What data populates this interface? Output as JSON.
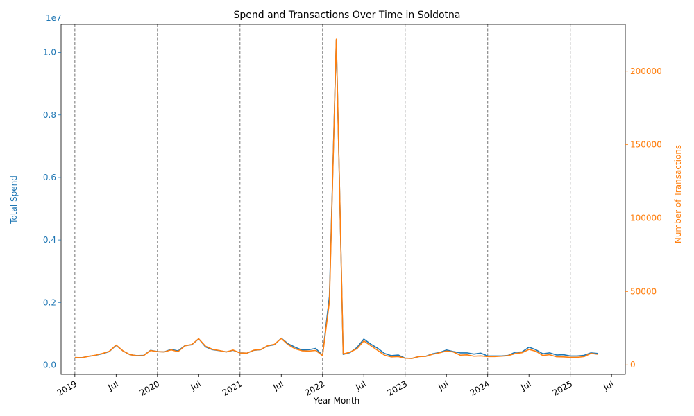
{
  "chart_data": {
    "type": "line",
    "title": "Spend and Transactions Over Time in Soldotna",
    "xlabel": "Year-Month",
    "y_left_label": "Total Spend",
    "y_right_label": "Number of Transactions",
    "y_left_offset_label": "1e7",
    "y_left_scale": 10000000,
    "y_left_lim": [
      -300000,
      10900000
    ],
    "y_right_lim": [
      -6500,
      232000
    ],
    "y_left_ticks": [
      0,
      2000000,
      4000000,
      6000000,
      8000000,
      10000000
    ],
    "y_left_tick_labels": [
      "0.0",
      "0.2",
      "0.4",
      "0.6",
      "0.8",
      "1.0"
    ],
    "y_right_ticks": [
      0,
      50000,
      100000,
      150000,
      200000
    ],
    "y_right_tick_labels": [
      "0",
      "50000",
      "100000",
      "150000",
      "200000"
    ],
    "x_ticks": [
      {
        "date": "2019-01",
        "label": "2019"
      },
      {
        "date": "2019-07",
        "label": "Jul"
      },
      {
        "date": "2020-01",
        "label": "2020"
      },
      {
        "date": "2020-07",
        "label": "Jul"
      },
      {
        "date": "2021-01",
        "label": "2021"
      },
      {
        "date": "2021-07",
        "label": "Jul"
      },
      {
        "date": "2022-01",
        "label": "2022"
      },
      {
        "date": "2022-07",
        "label": "Jul"
      },
      {
        "date": "2023-01",
        "label": "2023"
      },
      {
        "date": "2023-07",
        "label": "Jul"
      },
      {
        "date": "2024-01",
        "label": "2024"
      },
      {
        "date": "2024-07",
        "label": "Jul"
      },
      {
        "date": "2025-01",
        "label": "2025"
      },
      {
        "date": "2025-07",
        "label": "Jul"
      }
    ],
    "x_lim": [
      "2018-11",
      "2025-09"
    ],
    "year_lines": [
      "2019-01",
      "2020-01",
      "2021-01",
      "2022-01",
      "2023-01",
      "2024-01",
      "2025-01"
    ],
    "colors": {
      "spend": "#1f77b4",
      "transactions": "#ff7f0e",
      "year_line": "#808080"
    },
    "x": [
      "2019-01",
      "2019-02",
      "2019-03",
      "2019-04",
      "2019-05",
      "2019-06",
      "2019-07",
      "2019-08",
      "2019-09",
      "2019-10",
      "2019-11",
      "2019-12",
      "2020-01",
      "2020-02",
      "2020-03",
      "2020-04",
      "2020-05",
      "2020-06",
      "2020-07",
      "2020-08",
      "2020-09",
      "2020-10",
      "2020-11",
      "2020-12",
      "2021-01",
      "2021-02",
      "2021-03",
      "2021-04",
      "2021-05",
      "2021-06",
      "2021-07",
      "2021-08",
      "2021-09",
      "2021-10",
      "2021-11",
      "2021-12",
      "2022-01",
      "2022-02",
      "2022-03",
      "2022-04",
      "2022-05",
      "2022-06",
      "2022-07",
      "2022-08",
      "2022-09",
      "2022-10",
      "2022-11",
      "2022-12",
      "2023-01",
      "2023-02",
      "2023-03",
      "2023-04",
      "2023-05",
      "2023-06",
      "2023-07",
      "2023-08",
      "2023-09",
      "2023-10",
      "2023-11",
      "2023-12",
      "2024-01",
      "2024-02",
      "2024-03",
      "2024-04",
      "2024-05",
      "2024-06",
      "2024-07",
      "2024-08",
      "2024-09",
      "2024-10",
      "2024-11",
      "2024-12",
      "2025-01",
      "2025-02",
      "2025-03",
      "2025-04",
      "2025-05"
    ],
    "series": [
      {
        "name": "Total Spend",
        "axis": "left",
        "values": [
          240000,
          235000,
          280000,
          310000,
          360000,
          430000,
          630000,
          450000,
          330000,
          300000,
          310000,
          470000,
          430000,
          420000,
          500000,
          450000,
          620000,
          650000,
          840000,
          580000,
          490000,
          460000,
          420000,
          470000,
          390000,
          380000,
          470000,
          490000,
          610000,
          650000,
          860000,
          680000,
          570000,
          480000,
          490000,
          530000,
          310000,
          2200000,
          10400000,
          340000,
          400000,
          560000,
          830000,
          670000,
          540000,
          370000,
          300000,
          320000,
          220000,
          210000,
          270000,
          280000,
          360000,
          400000,
          480000,
          430000,
          390000,
          390000,
          350000,
          380000,
          290000,
          290000,
          290000,
          310000,
          410000,
          420000,
          570000,
          490000,
          360000,
          390000,
          320000,
          330000,
          290000,
          290000,
          310000,
          390000,
          370000
        ]
      },
      {
        "name": "Number of Transactions",
        "axis": "right",
        "values": [
          5000,
          4800,
          5800,
          6600,
          7800,
          9200,
          13500,
          9500,
          7000,
          6200,
          6300,
          9800,
          9000,
          8800,
          10200,
          9000,
          13000,
          13900,
          17800,
          12700,
          10600,
          9800,
          8800,
          10100,
          8100,
          8000,
          10000,
          10400,
          13000,
          14000,
          18000,
          13700,
          11000,
          9600,
          9400,
          9800,
          6300,
          43000,
          222000,
          7400,
          8700,
          11000,
          16300,
          13100,
          9900,
          6600,
          5400,
          5600,
          4500,
          4400,
          5600,
          5800,
          7200,
          8200,
          9400,
          8800,
          6600,
          6800,
          5900,
          6100,
          5600,
          5600,
          5900,
          6300,
          7700,
          8300,
          10500,
          9300,
          6400,
          6900,
          5500,
          5400,
          5100,
          5100,
          5600,
          7800,
          7200
        ]
      }
    ]
  }
}
